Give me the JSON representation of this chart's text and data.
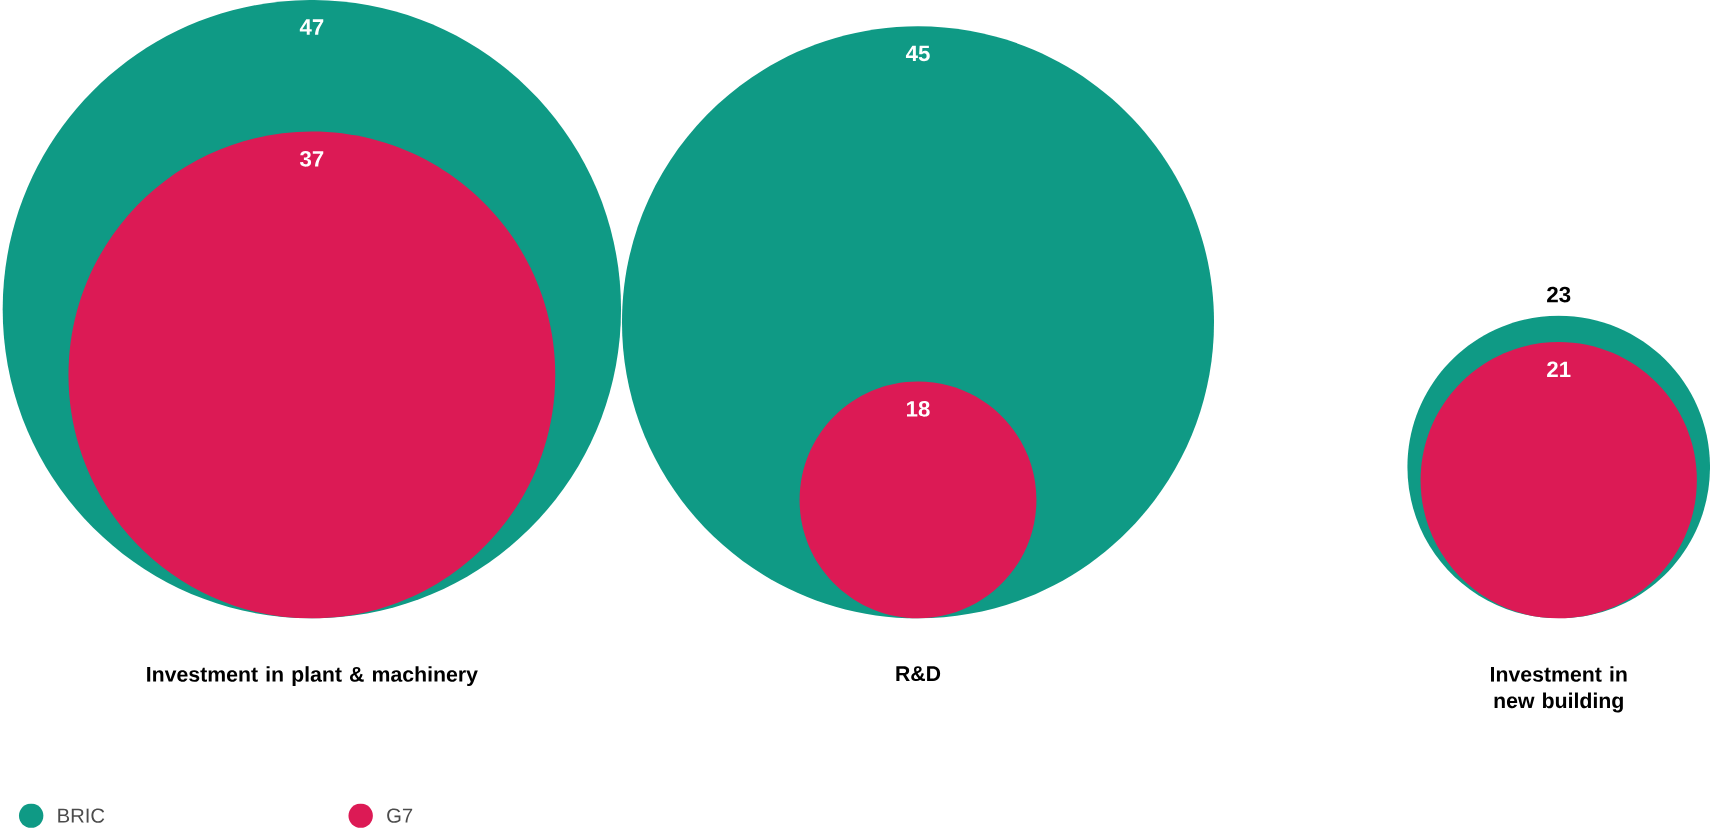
{
  "chart_data": {
    "type": "other",
    "categories": [
      "Investment in plant & machinery",
      "R&D",
      "Investment in new building"
    ],
    "series": [
      {
        "name": "BRIC",
        "color": "#0f9a85",
        "values": [
          47,
          45,
          23
        ]
      },
      {
        "name": "G7",
        "color": "#dc1a55",
        "values": [
          37,
          18,
          21
        ]
      }
    ],
    "data_labels": true,
    "legend": "bottom left"
  }
}
